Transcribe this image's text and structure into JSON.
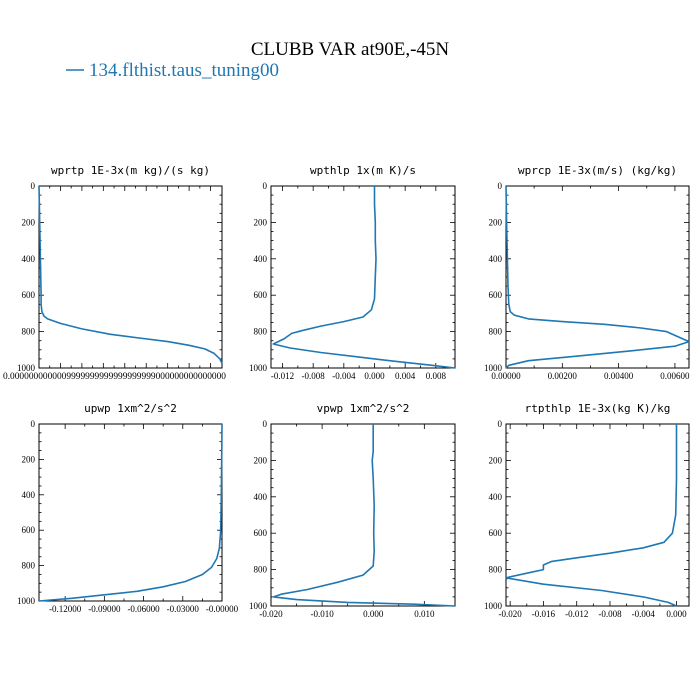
{
  "figure": {
    "title": "CLUBB VAR at90E,-45N",
    "legend_label": "134.flthist.taus_tuning00",
    "series_color": "#1f77b4"
  },
  "chart_data": [
    {
      "type": "line",
      "title": "wprtp  1E-3x(m kg)/(s kg)",
      "xlim": [
        0,
        0.0256
      ],
      "ylim": [
        1000,
        0
      ],
      "y_ticks": [
        "0",
        "200",
        "400",
        "600",
        "800",
        "1000"
      ],
      "x_tick_values": [
        0,
        0.003,
        0.006,
        0.009,
        0.012,
        0.015,
        0.018,
        0.021,
        0.024
      ],
      "x_tick_labels_text": "0.0000000000009999999999999999999000000000000000",
      "series": [
        {
          "x": [
            0,
            0.0001,
            0.0002,
            0.0003,
            0.0003,
            0.0004,
            0.0007,
            0.0012,
            0.003,
            0.006,
            0.01,
            0.014,
            0.018,
            0.021,
            0.0232,
            0.0245,
            0.0253,
            0.0256
          ],
          "y": [
            0,
            200,
            400,
            600,
            650,
            690,
            715,
            730,
            755,
            785,
            815,
            835,
            855,
            875,
            895,
            920,
            950,
            975
          ]
        }
      ]
    },
    {
      "type": "line",
      "title": "wpthlp  1x(m K)/s",
      "xlim": [
        -0.0135,
        0.0105
      ],
      "ylim": [
        1000,
        0
      ],
      "y_ticks": [
        "0",
        "200",
        "400",
        "600",
        "800",
        "1000"
      ],
      "x_ticks": [
        "-0.012",
        "-0.008",
        "-0.004",
        "0.000",
        "0.004",
        "0.008"
      ],
      "x_tick_values": [
        -0.012,
        -0.008,
        -0.004,
        0,
        0.004,
        0.008
      ],
      "series": [
        {
          "x": [
            0,
            0,
            0.0001,
            0.0001,
            0.0002,
            0.0001,
            0,
            -0.0004,
            -0.0015,
            -0.004,
            -0.007,
            -0.0095,
            -0.0108,
            -0.0118,
            -0.0128,
            -0.0132,
            -0.011,
            -0.007,
            -0.002,
            0.003,
            0.0075,
            0.0105
          ],
          "y": [
            0,
            100,
            200,
            300,
            400,
            500,
            620,
            680,
            720,
            745,
            770,
            795,
            810,
            840,
            860,
            868,
            890,
            915,
            940,
            965,
            985,
            1000
          ]
        }
      ]
    },
    {
      "type": "line",
      "title": "wprcp  1E-3x(m/s) (kg/kg)",
      "xlim": [
        0,
        0.0065
      ],
      "ylim": [
        1000,
        0
      ],
      "y_ticks": [
        "0",
        "200",
        "400",
        "600",
        "800",
        "1000"
      ],
      "x_ticks": [
        "0.00000",
        "0.00200",
        "0.00400",
        "0.00600"
      ],
      "x_tick_values": [
        0,
        0.002,
        0.004,
        0.006
      ],
      "series": [
        {
          "x": [
            0,
            2e-05,
            5e-05,
            7e-05,
            0.0001,
            0.00015,
            0.0003,
            0.0008,
            0.002,
            0.0035,
            0.0048,
            0.0057,
            0.0065,
            0.006,
            0.0045,
            0.0025,
            0.0008,
            0.0001,
            0
          ],
          "y": [
            0,
            200,
            400,
            550,
            650,
            690,
            710,
            730,
            745,
            760,
            780,
            800,
            855,
            880,
            905,
            935,
            960,
            985,
            1000
          ]
        }
      ]
    },
    {
      "type": "line",
      "title": "upwp  1xm^2/s^2",
      "xlim": [
        -0.14,
        0
      ],
      "ylim": [
        1000,
        0
      ],
      "y_ticks": [
        "0",
        "200",
        "400",
        "600",
        "800",
        "1000"
      ],
      "x_ticks": [
        "-0.12000",
        "-0.09000",
        "-0.06000",
        "-0.03000",
        "-0.00000"
      ],
      "x_tick_values": [
        -0.12,
        -0.09,
        -0.06,
        -0.03,
        0
      ],
      "series": [
        {
          "x": [
            0,
            -0.0002,
            -0.0005,
            -0.001,
            -0.002,
            -0.004,
            -0.008,
            -0.015,
            -0.028,
            -0.045,
            -0.065,
            -0.09,
            -0.115,
            -0.14
          ],
          "y": [
            0,
            200,
            400,
            600,
            700,
            760,
            810,
            850,
            890,
            920,
            945,
            965,
            985,
            1000
          ]
        }
      ]
    },
    {
      "type": "line",
      "title": "vpwp  1xm^2/s^2",
      "xlim": [
        -0.02,
        0.016
      ],
      "ylim": [
        1000,
        0
      ],
      "y_ticks": [
        "0",
        "200",
        "400",
        "600",
        "800",
        "1000"
      ],
      "x_ticks": [
        "-0.020",
        "-0.010",
        "0.000",
        "0.010"
      ],
      "x_tick_values": [
        -0.02,
        -0.01,
        0,
        0.01
      ],
      "series": [
        {
          "x": [
            0,
            0,
            -0.0002,
            0,
            0.0002,
            0.0001,
            0.0002,
            0,
            -0.002,
            -0.007,
            -0.013,
            -0.018,
            -0.0195,
            -0.015,
            -0.005,
            0.008,
            0.016
          ],
          "y": [
            0,
            150,
            200,
            300,
            450,
            600,
            700,
            780,
            830,
            870,
            910,
            935,
            950,
            965,
            980,
            990,
            1000
          ]
        }
      ]
    },
    {
      "type": "line",
      "title": "rtpthlp  1E-3x(kg K)/kg",
      "xlim": [
        -0.0205,
        0.0015
      ],
      "ylim": [
        1000,
        0
      ],
      "y_ticks": [
        "0",
        "200",
        "400",
        "600",
        "800",
        "1000"
      ],
      "x_ticks": [
        "-0.020",
        "-0.016",
        "-0.012",
        "-0.008",
        "-0.004",
        "0.000"
      ],
      "x_tick_values": [
        -0.02,
        -0.016,
        -0.012,
        -0.008,
        -0.004,
        0
      ],
      "series": [
        {
          "x": [
            0,
            0,
            -0.0001,
            -0.0005,
            -0.0015,
            -0.004,
            -0.008,
            -0.012,
            -0.015,
            -0.016,
            -0.016,
            -0.018,
            -0.0205,
            -0.016,
            -0.009,
            -0.004,
            -0.001,
            0
          ],
          "y": [
            0,
            300,
            500,
            600,
            650,
            680,
            710,
            735,
            755,
            775,
            800,
            820,
            845,
            880,
            915,
            950,
            980,
            1000
          ]
        }
      ]
    }
  ]
}
